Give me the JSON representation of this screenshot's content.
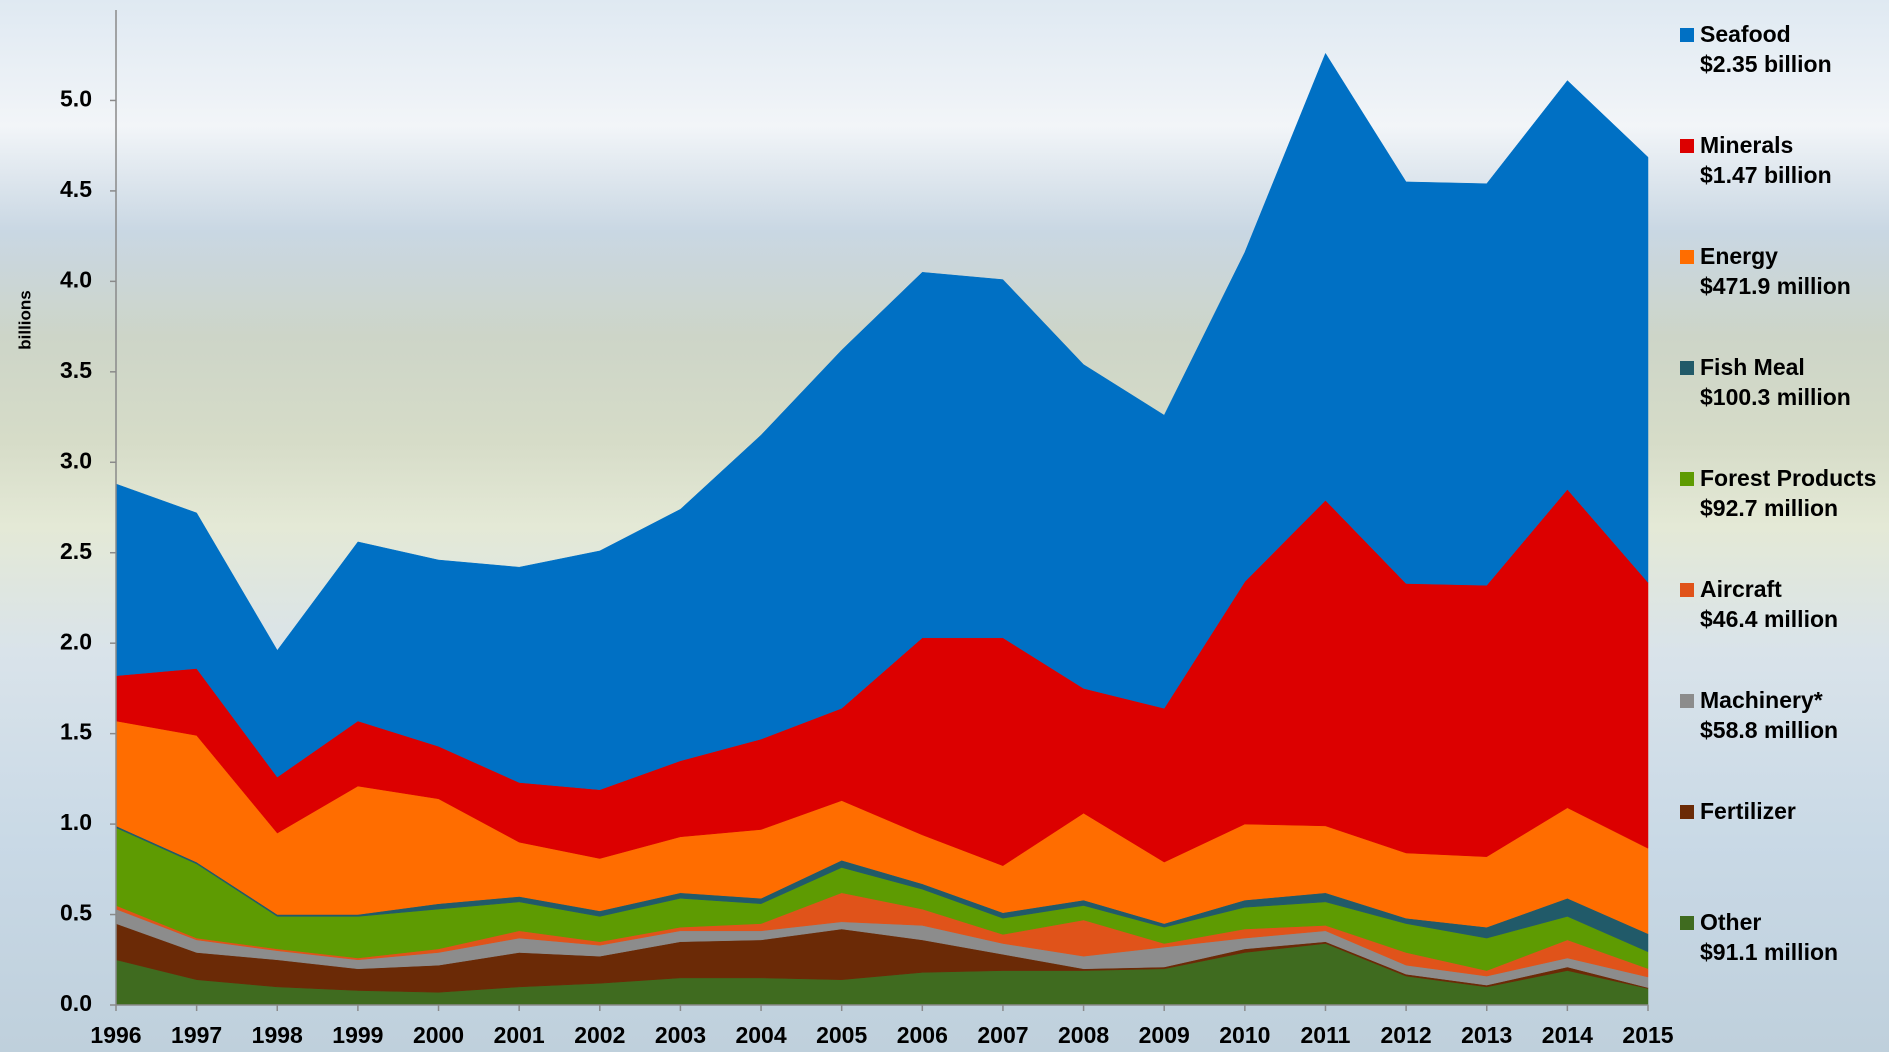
{
  "chart_data": {
    "type": "stacked_area",
    "y_label": "billions",
    "x": [
      1996,
      1997,
      1998,
      1999,
      2000,
      2001,
      2002,
      2003,
      2004,
      2005,
      2006,
      2007,
      2008,
      2009,
      2010,
      2011,
      2012,
      2013,
      2014,
      2015
    ],
    "xlim": [
      1996,
      2015
    ],
    "xticks": [
      1996,
      1997,
      1998,
      1999,
      2000,
      2001,
      2002,
      2003,
      2004,
      2005,
      2006,
      2007,
      2008,
      2009,
      2010,
      2011,
      2012,
      2013,
      2014,
      2015
    ],
    "ylim": [
      0,
      5.5
    ],
    "yticks": [
      {
        "value": 0,
        "label": "0.0"
      },
      0.5,
      {
        "value": 1,
        "label": "1.0"
      },
      1.5,
      {
        "value": 2,
        "label": "2.0"
      },
      2.5,
      {
        "value": 3,
        "label": "3.0"
      },
      3.5,
      {
        "value": 4,
        "label": "4.0"
      },
      4.5,
      {
        "value": 5,
        "label": "5.0"
      }
    ],
    "series": [
      {
        "name": "Other",
        "latest_label": "$91.1 million",
        "color": "#3f6b1f",
        "values": [
          0.25,
          0.14,
          0.1,
          0.08,
          0.07,
          0.1,
          0.12,
          0.15,
          0.15,
          0.14,
          0.18,
          0.19,
          0.19,
          0.2,
          0.29,
          0.34,
          0.16,
          0.1,
          0.19,
          0.091
        ]
      },
      {
        "name": "Fertilizer",
        "color": "#6b2a06",
        "values": [
          0.2,
          0.15,
          0.15,
          0.12,
          0.15,
          0.19,
          0.15,
          0.2,
          0.21,
          0.28,
          0.18,
          0.09,
          0.01,
          0.01,
          0.02,
          0.01,
          0.01,
          0.01,
          0.02,
          0.005
        ]
      },
      {
        "name": "Machinery*",
        "latest_label": "$58.8 million",
        "color": "#8c8c8c",
        "values": [
          0.08,
          0.07,
          0.05,
          0.05,
          0.07,
          0.08,
          0.06,
          0.06,
          0.05,
          0.04,
          0.08,
          0.06,
          0.07,
          0.11,
          0.06,
          0.06,
          0.05,
          0.05,
          0.05,
          0.0588
        ]
      },
      {
        "name": "Aircraft",
        "latest_label": "$46.4 million",
        "color": "#e0531a",
        "values": [
          0.02,
          0.01,
          0.01,
          0.01,
          0.02,
          0.04,
          0.02,
          0.02,
          0.04,
          0.16,
          0.09,
          0.05,
          0.2,
          0.02,
          0.05,
          0.03,
          0.07,
          0.03,
          0.1,
          0.0464
        ]
      },
      {
        "name": "Forest Products",
        "latest_label": "$92.7 million",
        "color": "#5e9b02",
        "values": [
          0.43,
          0.41,
          0.18,
          0.23,
          0.22,
          0.16,
          0.14,
          0.16,
          0.11,
          0.14,
          0.11,
          0.09,
          0.08,
          0.09,
          0.12,
          0.13,
          0.16,
          0.18,
          0.13,
          0.0927
        ]
      },
      {
        "name": "Fish Meal",
        "latest_label": "$100.3 million",
        "color": "#215a69",
        "values": [
          0.01,
          0.01,
          0.01,
          0.01,
          0.03,
          0.03,
          0.03,
          0.03,
          0.03,
          0.04,
          0.03,
          0.03,
          0.03,
          0.02,
          0.04,
          0.05,
          0.03,
          0.06,
          0.1,
          0.1003
        ]
      },
      {
        "name": "Energy",
        "latest_label": "$471.9 million",
        "color": "#ff6d00",
        "values": [
          0.58,
          0.7,
          0.45,
          0.71,
          0.58,
          0.3,
          0.29,
          0.31,
          0.38,
          0.33,
          0.27,
          0.26,
          0.48,
          0.34,
          0.42,
          0.37,
          0.36,
          0.39,
          0.5,
          0.4719
        ]
      },
      {
        "name": "Minerals",
        "latest_label": "$1.47 billion",
        "color": "#dc0000",
        "values": [
          0.25,
          0.37,
          0.31,
          0.36,
          0.29,
          0.33,
          0.38,
          0.42,
          0.5,
          0.51,
          1.09,
          1.26,
          0.69,
          0.85,
          1.34,
          1.8,
          1.49,
          1.5,
          1.76,
          1.47
        ]
      },
      {
        "name": "Seafood",
        "latest_label": "$2.35 billion",
        "color": "#0070c4",
        "values": [
          1.06,
          0.86,
          0.7,
          0.99,
          1.03,
          1.19,
          1.32,
          1.39,
          1.68,
          1.98,
          2.02,
          1.98,
          1.79,
          1.62,
          1.82,
          2.47,
          2.22,
          2.22,
          2.26,
          2.35
        ]
      }
    ]
  }
}
